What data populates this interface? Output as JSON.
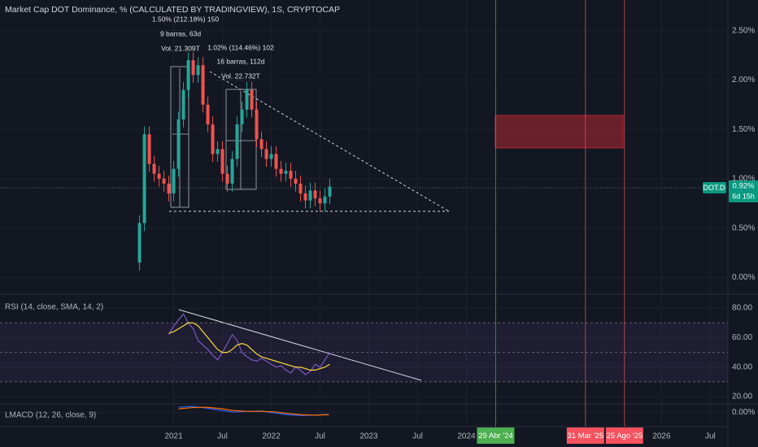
{
  "title": "Market Cap DOT Dominance, % (CALCULATED BY TRADINGVIEW), 1S, CRYPTOCAP",
  "chart_data": [
    {
      "type": "candlestick",
      "x": [
        2020.65,
        2020.7,
        2020.75,
        2020.8,
        2020.85,
        2020.9,
        2020.95,
        2021.0,
        2021.05,
        2021.1,
        2021.15,
        2021.2,
        2021.25,
        2021.3,
        2021.35,
        2021.4,
        2021.45,
        2021.5,
        2021.55,
        2021.6,
        2021.65,
        2021.7,
        2021.75,
        2021.8,
        2021.85,
        2021.9,
        2021.95,
        2022.0,
        2022.05,
        2022.1,
        2022.15,
        2022.2,
        2022.25,
        2022.3,
        2022.35,
        2022.4,
        2022.45,
        2022.5,
        2022.55,
        2022.6
      ],
      "open": [
        0.15,
        0.55,
        1.45,
        1.15,
        1.05,
        1.0,
        0.95,
        0.85,
        1.1,
        1.6,
        1.9,
        2.2,
        2.05,
        2.15,
        1.75,
        1.55,
        1.25,
        1.3,
        1.05,
        0.95,
        1.2,
        1.55,
        1.7,
        1.9,
        1.7,
        1.4,
        1.3,
        1.2,
        1.25,
        1.1,
        1.05,
        1.08,
        1.0,
        0.95,
        0.85,
        0.78,
        0.88,
        0.8,
        0.75,
        0.82
      ],
      "high": [
        0.63,
        1.53,
        1.53,
        1.23,
        1.13,
        1.08,
        1.03,
        1.18,
        1.68,
        1.98,
        2.28,
        2.28,
        2.23,
        2.23,
        1.83,
        1.63,
        1.38,
        1.38,
        1.13,
        1.28,
        1.63,
        1.78,
        1.98,
        1.98,
        1.78,
        1.48,
        1.38,
        1.33,
        1.33,
        1.18,
        1.16,
        1.16,
        1.08,
        1.03,
        0.93,
        0.96,
        0.96,
        0.88,
        0.9,
        1.0
      ],
      "low": [
        0.07,
        0.47,
        1.07,
        0.97,
        0.92,
        0.87,
        0.77,
        0.77,
        1.02,
        1.52,
        1.82,
        1.97,
        1.97,
        1.67,
        1.47,
        1.17,
        1.17,
        0.97,
        0.87,
        0.87,
        1.12,
        1.47,
        1.62,
        1.62,
        1.32,
        1.22,
        1.12,
        1.12,
        1.02,
        0.97,
        0.97,
        0.92,
        0.87,
        0.77,
        0.7,
        0.7,
        0.72,
        0.67,
        0.67,
        0.74
      ],
      "close": [
        0.55,
        1.45,
        1.15,
        1.05,
        1.0,
        0.95,
        0.85,
        1.1,
        1.6,
        1.9,
        2.2,
        2.05,
        2.15,
        1.75,
        1.55,
        1.25,
        1.3,
        1.05,
        0.95,
        1.2,
        1.55,
        1.7,
        1.9,
        1.7,
        1.4,
        1.3,
        1.2,
        1.25,
        1.1,
        1.05,
        1.08,
        1.0,
        0.95,
        0.85,
        0.78,
        0.88,
        0.8,
        0.75,
        0.82,
        0.92
      ],
      "up_color": "#26a69a",
      "down_color": "#ef5350",
      "xlim": [
        2019.22,
        2026.68
      ],
      "ylim": [
        -0.17,
        2.81
      ],
      "yticks": [
        {
          "value": 0,
          "label": "0.00%"
        },
        {
          "value": 0.5,
          "label": "0.50%"
        },
        {
          "value": 1,
          "label": "1.00%"
        },
        {
          "value": 1.5,
          "label": "1.50%"
        },
        {
          "value": 2,
          "label": "2.00%"
        },
        {
          "value": 2.5,
          "label": "2.50%"
        }
      ],
      "xticks": [
        {
          "value": 2021,
          "label": "2021"
        },
        {
          "value": 2021.5,
          "label": "Jul"
        },
        {
          "value": 2022,
          "label": "2022"
        },
        {
          "value": 2022.5,
          "label": "Jul"
        },
        {
          "value": 2023,
          "label": "2023"
        },
        {
          "value": 2023.5,
          "label": "Jul"
        },
        {
          "value": 2024,
          "label": "2024"
        },
        {
          "value": 2026,
          "label": "2026"
        },
        {
          "value": 2026.5,
          "label": "Jul"
        }
      ]
    },
    {
      "type": "line",
      "title": "RSI (14, close, SMA, 14, 2)",
      "x": [
        2020.95,
        2021.0,
        2021.05,
        2021.1,
        2021.15,
        2021.2,
        2021.25,
        2021.3,
        2021.35,
        2021.4,
        2021.45,
        2021.5,
        2021.55,
        2021.6,
        2021.65,
        2021.7,
        2021.75,
        2021.8,
        2021.85,
        2021.9,
        2021.95,
        2022.0,
        2022.05,
        2022.1,
        2022.15,
        2022.2,
        2022.25,
        2022.3,
        2022.35,
        2022.4,
        2022.45,
        2022.5,
        2022.55,
        2022.6
      ],
      "series": [
        {
          "color": "#7e57c2",
          "values": [
            62,
            68,
            72,
            76,
            70,
            66,
            58,
            55,
            52,
            48,
            45,
            50,
            56,
            62,
            58,
            50,
            47,
            45,
            44,
            46,
            44,
            42,
            40,
            41,
            38,
            36,
            40,
            38,
            35,
            37,
            42,
            40,
            45,
            50
          ]
        },
        {
          "color": "#fdd835",
          "values": [
            63,
            64,
            66,
            68,
            70,
            70,
            68,
            64,
            60,
            56,
            52,
            50,
            50,
            52,
            55,
            56,
            55,
            52,
            49,
            47,
            46,
            45,
            44,
            43,
            42,
            41,
            40,
            40,
            39,
            38,
            38,
            39,
            40,
            42
          ]
        }
      ],
      "bands": [
        70,
        50,
        30
      ],
      "xlim": [
        2019.22,
        2026.68
      ],
      "ylim": [
        15.1,
        89.4
      ],
      "yticks": [
        {
          "value": 20,
          "label": "20.00"
        },
        {
          "value": 40,
          "label": "40.00"
        },
        {
          "value": 60,
          "label": "60.00"
        },
        {
          "value": 80,
          "label": "80.00"
        }
      ]
    },
    {
      "type": "line",
      "title": "LMACD (12, 26, close, 9)",
      "x": [
        2021.05,
        2021.19,
        2021.33,
        2021.47,
        2021.61,
        2021.75,
        2021.89,
        2022.03,
        2022.17,
        2022.31,
        2022.45,
        2022.59
      ],
      "series": [
        {
          "color": "#2962ff",
          "values": [
            0.12,
            0.14,
            0.1,
            0.05,
            0.0,
            0.02,
            0.03,
            -0.02,
            -0.06,
            -0.08,
            -0.07,
            -0.05
          ]
        },
        {
          "color": "#ff6d00",
          "values": [
            0.08,
            0.11,
            0.12,
            0.09,
            0.04,
            0.02,
            0.02,
            0.01,
            -0.03,
            -0.06,
            -0.07,
            -0.06
          ]
        }
      ],
      "xlim": [
        2019.22,
        2026.68
      ],
      "ylim": [
        -0.35,
        0.2
      ],
      "yticks": [
        {
          "value": 0,
          "label": "0.00%"
        }
      ]
    }
  ],
  "annotations": [
    "1.50% (212.18%) 150",
    "9 barras, 63d",
    "Vol. 21.309T",
    "1.02% (114.46%) 102",
    "16 barras, 112d",
    "Vol. 22.732T"
  ],
  "events": [
    {
      "label": "29 Abr '24",
      "x": 2024.3,
      "color": "#4caf50"
    },
    {
      "label": "31 Mar '25",
      "x": 2025.22,
      "color": "#f7525f"
    },
    {
      "label": "25 Ago '25",
      "x": 2025.62,
      "color": "#f7525f"
    }
  ],
  "badges": {
    "symbol": "DOT.D",
    "price": "0.92%",
    "countdown": "6d 15h"
  }
}
